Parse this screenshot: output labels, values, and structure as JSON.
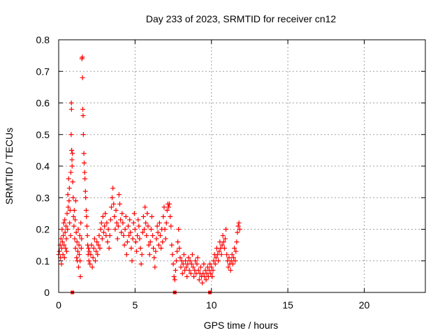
{
  "chart_data": {
    "type": "scatter",
    "title": "Day 233 of 2023, SRMTID for receiver cn12",
    "xlabel": "GPS time / hours",
    "ylabel": "SRMTID / TECUs",
    "xlim": [
      0,
      24
    ],
    "ylim": [
      0,
      0.8
    ],
    "xticks": [
      0,
      5,
      10,
      15,
      20
    ],
    "yticks": [
      0,
      0.1,
      0.2,
      0.3,
      0.4,
      0.5,
      0.6,
      0.7,
      0.8
    ],
    "xtick_labels": [
      "0",
      "5",
      "10",
      "15",
      "20"
    ],
    "ytick_labels": [
      "0",
      "0.1",
      "0.2",
      "0.3",
      "0.4",
      "0.5",
      "0.6",
      "0.7",
      "0.8"
    ],
    "grid": true,
    "series": [
      {
        "name": "SRMTID",
        "color": "#ff0000",
        "marker": "plus",
        "points": [
          [
            0.0,
            0.12
          ],
          [
            0.05,
            0.13
          ],
          [
            0.1,
            0.15
          ],
          [
            0.12,
            0.11
          ],
          [
            0.15,
            0.17
          ],
          [
            0.18,
            0.09
          ],
          [
            0.2,
            0.14
          ],
          [
            0.22,
            0.2
          ],
          [
            0.25,
            0.16
          ],
          [
            0.28,
            0.12
          ],
          [
            0.3,
            0.18
          ],
          [
            0.33,
            0.22
          ],
          [
            0.35,
            0.15
          ],
          [
            0.38,
            0.11
          ],
          [
            0.4,
            0.23
          ],
          [
            0.42,
            0.19
          ],
          [
            0.45,
            0.14
          ],
          [
            0.48,
            0.21
          ],
          [
            0.5,
            0.17
          ],
          [
            0.52,
            0.13
          ],
          [
            0.55,
            0.25
          ],
          [
            0.58,
            0.2
          ],
          [
            0.6,
            0.31
          ],
          [
            0.62,
            0.27
          ],
          [
            0.65,
            0.36
          ],
          [
            0.68,
            0.29
          ],
          [
            0.7,
            0.33
          ],
          [
            0.72,
            0.22
          ],
          [
            0.75,
            0.26
          ],
          [
            0.78,
            0.18
          ],
          [
            0.8,
            0.38
          ],
          [
            0.82,
            0.5
          ],
          [
            0.83,
            0.6
          ],
          [
            0.84,
            0.58
          ],
          [
            0.85,
            0.45
          ],
          [
            0.87,
            0.42
          ],
          [
            0.88,
            0.4
          ],
          [
            0.9,
            0.44
          ],
          [
            0.92,
            0.35
          ],
          [
            0.95,
            0.3
          ],
          [
            0.97,
            0.24
          ],
          [
            1.0,
            0.21
          ],
          [
            1.02,
            0.26
          ],
          [
            1.05,
            0.17
          ],
          [
            1.08,
            0.23
          ],
          [
            1.1,
            0.14
          ],
          [
            1.12,
            0.29
          ],
          [
            1.15,
            0.19
          ],
          [
            1.18,
            0.11
          ],
          [
            1.2,
            0.16
          ],
          [
            1.22,
            0.1
          ],
          [
            1.25,
            0.13
          ],
          [
            1.28,
            0.2
          ],
          [
            1.3,
            0.08
          ],
          [
            1.33,
            0.15
          ],
          [
            1.35,
            0.12
          ],
          [
            1.38,
            0.18
          ],
          [
            1.4,
            0.1
          ],
          [
            1.42,
            0.05
          ],
          [
            1.45,
            0.22
          ],
          [
            1.48,
            0.14
          ],
          [
            1.5,
            0.17
          ],
          [
            1.52,
            0.74
          ],
          [
            1.55,
            0.745
          ],
          [
            1.56,
            0.68
          ],
          [
            1.58,
            0.58
          ],
          [
            1.6,
            0.56
          ],
          [
            1.62,
            0.5
          ],
          [
            1.65,
            0.44
          ],
          [
            1.67,
            0.41
          ],
          [
            1.7,
            0.38
          ],
          [
            1.72,
            0.36
          ],
          [
            1.75,
            0.32
          ],
          [
            1.77,
            0.3
          ],
          [
            1.8,
            0.26
          ],
          [
            1.82,
            0.24
          ],
          [
            1.85,
            0.21
          ],
          [
            1.88,
            0.18
          ],
          [
            1.9,
            0.15
          ],
          [
            1.93,
            0.12
          ],
          [
            1.95,
            0.14
          ],
          [
            1.98,
            0.1
          ],
          [
            2.0,
            0.13
          ],
          [
            2.05,
            0.09
          ],
          [
            2.1,
            0.12
          ],
          [
            2.15,
            0.15
          ],
          [
            2.2,
            0.08
          ],
          [
            2.25,
            0.11
          ],
          [
            2.3,
            0.14
          ],
          [
            2.35,
            0.17
          ],
          [
            2.4,
            0.1
          ],
          [
            2.45,
            0.13
          ],
          [
            2.5,
            0.16
          ],
          [
            2.55,
            0.12
          ],
          [
            2.6,
            0.15
          ],
          [
            2.65,
            0.18
          ],
          [
            2.7,
            0.14
          ],
          [
            2.75,
            0.2
          ],
          [
            2.8,
            0.22
          ],
          [
            2.85,
            0.17
          ],
          [
            2.9,
            0.24
          ],
          [
            2.95,
            0.19
          ],
          [
            3.0,
            0.21
          ],
          [
            3.05,
            0.25
          ],
          [
            3.1,
            0.18
          ],
          [
            3.15,
            0.22
          ],
          [
            3.2,
            0.16
          ],
          [
            3.25,
            0.2
          ],
          [
            3.3,
            0.14
          ],
          [
            3.35,
            0.18
          ],
          [
            3.4,
            0.23
          ],
          [
            3.45,
            0.27
          ],
          [
            3.5,
            0.3
          ],
          [
            3.55,
            0.33
          ],
          [
            3.6,
            0.28
          ],
          [
            3.65,
            0.24
          ],
          [
            3.7,
            0.2
          ],
          [
            3.75,
            0.26
          ],
          [
            3.8,
            0.22
          ],
          [
            3.85,
            0.17
          ],
          [
            3.9,
            0.21
          ],
          [
            3.95,
            0.31
          ],
          [
            4.0,
            0.28
          ],
          [
            4.05,
            0.23
          ],
          [
            4.1,
            0.19
          ],
          [
            4.15,
            0.25
          ],
          [
            4.2,
            0.22
          ],
          [
            4.25,
            0.18
          ],
          [
            4.3,
            0.15
          ],
          [
            4.35,
            0.2
          ],
          [
            4.4,
            0.24
          ],
          [
            4.45,
            0.12
          ],
          [
            4.5,
            0.16
          ],
          [
            4.55,
            0.21
          ],
          [
            4.6,
            0.18
          ],
          [
            4.65,
            0.23
          ],
          [
            4.7,
            0.19
          ],
          [
            4.75,
            0.14
          ],
          [
            4.8,
            0.1
          ],
          [
            4.85,
            0.17
          ],
          [
            4.9,
            0.22
          ],
          [
            4.95,
            0.25
          ],
          [
            5.0,
            0.2
          ],
          [
            5.05,
            0.16
          ],
          [
            5.1,
            0.13
          ],
          [
            5.15,
            0.18
          ],
          [
            5.2,
            0.23
          ],
          [
            5.25,
            0.21
          ],
          [
            5.3,
            0.17
          ],
          [
            5.35,
            0.14
          ],
          [
            5.4,
            0.09
          ],
          [
            5.45,
            0.12
          ],
          [
            5.5,
            0.19
          ],
          [
            5.55,
            0.24
          ],
          [
            5.6,
            0.2
          ],
          [
            5.65,
            0.27
          ],
          [
            5.7,
            0.22
          ],
          [
            5.75,
            0.18
          ],
          [
            5.8,
            0.25
          ],
          [
            5.85,
            0.21
          ],
          [
            5.9,
            0.15
          ],
          [
            5.95,
            0.12
          ],
          [
            6.0,
            0.16
          ],
          [
            6.05,
            0.2
          ],
          [
            6.1,
            0.24
          ],
          [
            6.15,
            0.18
          ],
          [
            6.2,
            0.14
          ],
          [
            6.25,
            0.11
          ],
          [
            6.3,
            0.08
          ],
          [
            6.35,
            0.13
          ],
          [
            6.4,
            0.17
          ],
          [
            6.45,
            0.21
          ],
          [
            6.5,
            0.19
          ],
          [
            6.55,
            0.15
          ],
          [
            6.6,
            0.22
          ],
          [
            6.65,
            0.18
          ],
          [
            6.7,
            0.14
          ],
          [
            6.75,
            0.2
          ],
          [
            6.8,
            0.16
          ],
          [
            6.85,
            0.24
          ],
          [
            6.9,
            0.27
          ],
          [
            6.95,
            0.2
          ],
          [
            7.0,
            0.17
          ],
          [
            7.05,
            0.22
          ],
          [
            7.1,
            0.26
          ],
          [
            7.15,
            0.28
          ],
          [
            7.2,
            0.27
          ],
          [
            7.25,
            0.28
          ],
          [
            7.3,
            0.24
          ],
          [
            7.35,
            0.21
          ],
          [
            7.4,
            0.15
          ],
          [
            7.45,
            0.12
          ],
          [
            7.5,
            0.09
          ],
          [
            7.55,
            0.05
          ],
          [
            7.6,
            0.04
          ],
          [
            7.65,
            0.07
          ],
          [
            7.7,
            0.1
          ],
          [
            7.75,
            0.13
          ],
          [
            7.8,
            0.16
          ],
          [
            7.85,
            0.2
          ],
          [
            7.9,
            0.14
          ],
          [
            7.95,
            0.11
          ],
          [
            8.0,
            0.08
          ],
          [
            8.05,
            0.1
          ],
          [
            8.1,
            0.06
          ],
          [
            8.15,
            0.09
          ],
          [
            8.2,
            0.12
          ],
          [
            8.25,
            0.07
          ],
          [
            8.3,
            0.1
          ],
          [
            8.35,
            0.08
          ],
          [
            8.4,
            0.05
          ],
          [
            8.45,
            0.09
          ],
          [
            8.5,
            0.11
          ],
          [
            8.55,
            0.07
          ],
          [
            8.6,
            0.1
          ],
          [
            8.65,
            0.06
          ],
          [
            8.7,
            0.09
          ],
          [
            8.75,
            0.12
          ],
          [
            8.8,
            0.08
          ],
          [
            8.85,
            0.05
          ],
          [
            8.9,
            0.07
          ],
          [
            8.95,
            0.1
          ],
          [
            9.0,
            0.06
          ],
          [
            9.05,
            0.09
          ],
          [
            9.1,
            0.11
          ],
          [
            9.15,
            0.07
          ],
          [
            9.2,
            0.04
          ],
          [
            9.25,
            0.06
          ],
          [
            9.3,
            0.08
          ],
          [
            9.35,
            0.05
          ],
          [
            9.4,
            0.03
          ],
          [
            9.45,
            0.06
          ],
          [
            9.5,
            0.09
          ],
          [
            9.55,
            0.05
          ],
          [
            9.6,
            0.07
          ],
          [
            9.65,
            0.04
          ],
          [
            9.7,
            0.06
          ],
          [
            9.75,
            0.08
          ],
          [
            9.8,
            0.05
          ],
          [
            9.85,
            0.07
          ],
          [
            9.9,
            0.09
          ],
          [
            9.95,
            0.06
          ],
          [
            10.0,
            0.08
          ],
          [
            10.05,
            0.05
          ],
          [
            10.1,
            0.07
          ],
          [
            10.15,
            0.1
          ],
          [
            10.2,
            0.12
          ],
          [
            10.25,
            0.09
          ],
          [
            10.3,
            0.11
          ],
          [
            10.35,
            0.14
          ],
          [
            10.4,
            0.12
          ],
          [
            10.45,
            0.1
          ],
          [
            10.5,
            0.13
          ],
          [
            10.55,
            0.16
          ],
          [
            10.6,
            0.14
          ],
          [
            10.65,
            0.12
          ],
          [
            10.7,
            0.15
          ],
          [
            10.75,
            0.18
          ],
          [
            10.8,
            0.16
          ],
          [
            10.85,
            0.14
          ],
          [
            10.9,
            0.17
          ],
          [
            10.95,
            0.2
          ],
          [
            11.0,
            0.12
          ],
          [
            11.05,
            0.1
          ],
          [
            11.1,
            0.08
          ],
          [
            11.15,
            0.11
          ],
          [
            11.2,
            0.09
          ],
          [
            11.25,
            0.07
          ],
          [
            11.3,
            0.1
          ],
          [
            11.35,
            0.12
          ],
          [
            11.4,
            0.09
          ],
          [
            11.45,
            0.11
          ],
          [
            11.5,
            0.14
          ],
          [
            11.55,
            0.1
          ],
          [
            11.6,
            0.13
          ],
          [
            11.65,
            0.16
          ],
          [
            11.7,
            0.19
          ],
          [
            11.75,
            0.21
          ],
          [
            11.8,
            0.22
          ],
          [
            11.85,
            0.2
          ]
        ]
      }
    ],
    "baseline_markers_x": [
      0.9,
      7.6,
      9.9
    ]
  }
}
